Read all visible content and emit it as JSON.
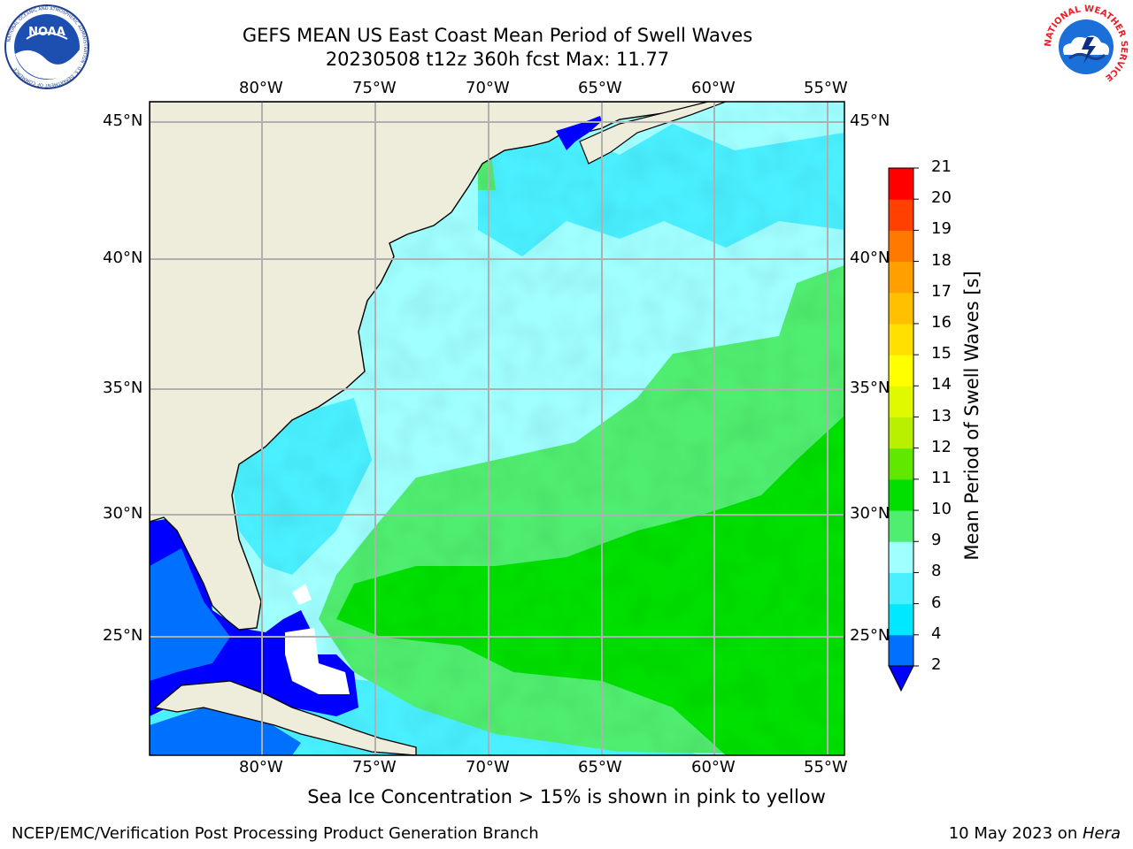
{
  "header": {
    "title_line1": "GEFS MEAN US East Coast Mean Period of Swell Waves",
    "title_line2": "20230508 t12z 360h fcst   Max: 11.77"
  },
  "logos": {
    "left": "NOAA",
    "left_ring": "NATIONAL OCEANIC AND ATMOSPHERIC ADMINISTRATION · U.S. DEPARTMENT OF COMMERCE",
    "right_ring": "NATIONAL WEATHER SERVICE"
  },
  "map": {
    "lon_labels": [
      "80°W",
      "75°W",
      "70°W",
      "65°W",
      "60°W",
      "55°W"
    ],
    "lat_labels": [
      "45°N",
      "40°N",
      "35°N",
      "30°N",
      "25°N"
    ],
    "colors": {
      "land": "#eeeddc",
      "grid": "#b0b0b0",
      "coast": "#000000"
    }
  },
  "colorbar": {
    "title": "Mean Period of Swell Waves [s]",
    "tick_labels": [
      "2",
      "4",
      "6",
      "8",
      "9",
      "10",
      "11",
      "12",
      "13",
      "14",
      "15",
      "16",
      "17",
      "18",
      "19",
      "20",
      "21"
    ],
    "colors": [
      "#0070ff",
      "#00e8ff",
      "#4af0ff",
      "#a0ffff",
      "#50ee70",
      "#00e000",
      "#60e800",
      "#b8f000",
      "#e0f800",
      "#ffff00",
      "#ffe000",
      "#ffc000",
      "#ffa000",
      "#ff7800",
      "#ff4000",
      "#ff0000"
    ],
    "under_color": "#0000ff"
  },
  "note": "Sea Ice Concentration > 15% is shown in pink to yellow",
  "footer": {
    "left": "NCEP/EMC/Verification Post Processing Product Generation Branch",
    "right_date": "10 May 2023 on ",
    "right_host": "Hera"
  }
}
